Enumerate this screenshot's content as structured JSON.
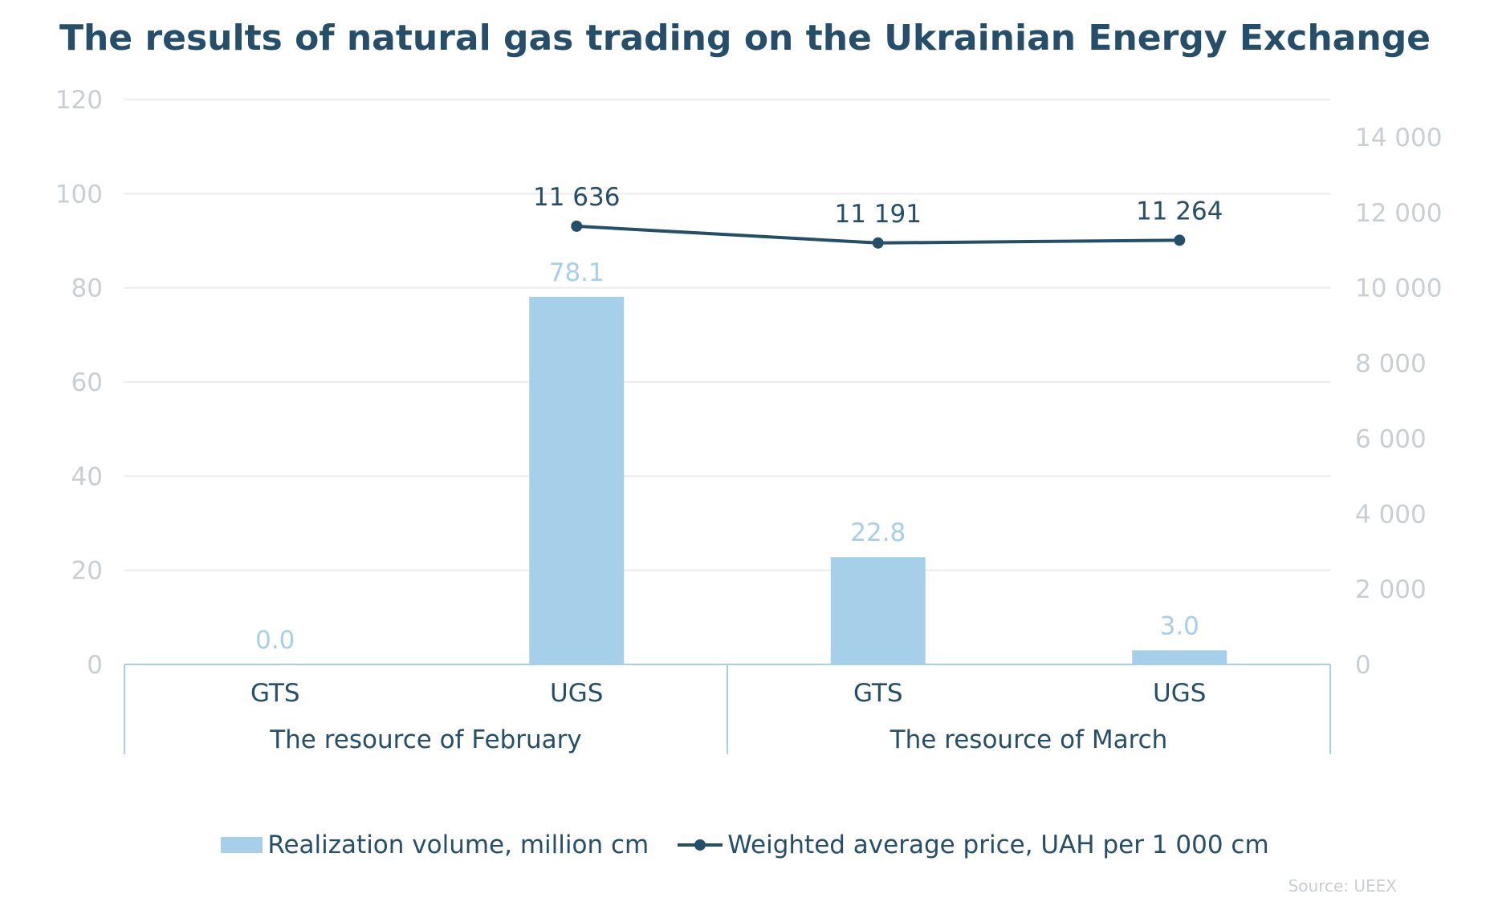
{
  "chart_data": {
    "type": "bar",
    "title": "The results of natural gas trading on the Ukrainian Energy Exchange",
    "groups": [
      {
        "label": "The resource of February",
        "categories": [
          "GTS",
          "UGS"
        ]
      },
      {
        "label": "The resource of March",
        "categories": [
          "GTS",
          "UGS"
        ]
      }
    ],
    "categories": [
      "GTS",
      "UGS",
      "GTS",
      "UGS"
    ],
    "series": [
      {
        "name": "Realization volume, million cm",
        "type": "bar",
        "axis": "left",
        "values": [
          0.0,
          78.1,
          22.8,
          3.0
        ],
        "labels": [
          "0.0",
          "78.1",
          "22.8",
          "3.0"
        ],
        "color": "#a6cfe9"
      },
      {
        "name": "Weighted average price, UAH per 1 000 cm",
        "type": "line",
        "axis": "right",
        "values": [
          null,
          11636,
          11191,
          11264
        ],
        "labels": [
          "",
          "11 636",
          "11 191",
          "11 264"
        ],
        "color": "#244e6a"
      }
    ],
    "y_left": {
      "ylim": [
        0,
        120
      ],
      "ticks": [
        "0",
        "20",
        "40",
        "60",
        "80",
        "100",
        "120"
      ]
    },
    "y_right": {
      "ylim": [
        0,
        15000
      ],
      "ticks": [
        "0",
        "2 000",
        "4 000",
        "6 000",
        "8 000",
        "10 000",
        "12 000",
        "14 000"
      ]
    },
    "grid": true,
    "legend": "bottom",
    "source": "Source: UEEX"
  }
}
